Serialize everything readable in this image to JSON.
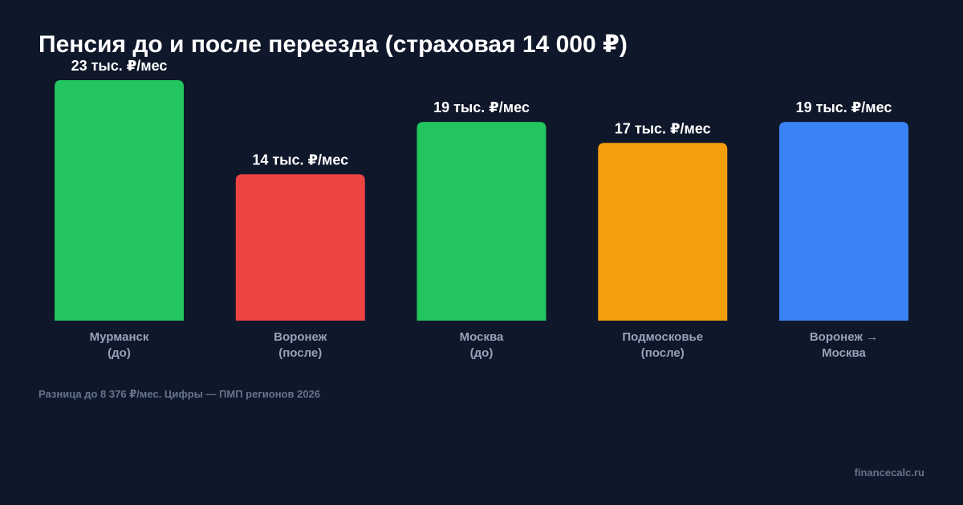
{
  "chart_data": {
    "type": "bar",
    "title": "Пенсия до и после переезда (страховая 14 000 ₽)",
    "categories": [
      [
        "Мурманск",
        "(до)"
      ],
      [
        "Воронеж",
        "(после)"
      ],
      [
        "Москва",
        "(до)"
      ],
      [
        "Подмосковье",
        "(после)"
      ],
      [
        "Воронеж →",
        "Москва"
      ]
    ],
    "values": [
      23,
      14,
      19,
      17,
      19
    ],
    "value_labels": [
      "23 тыс. ₽/мес",
      "14 тыс. ₽/мес",
      "19 тыс. ₽/мес",
      "17 тыс. ₽/мес",
      "19 тыс. ₽/мес"
    ],
    "colors": [
      "#22c55e",
      "#ef4444",
      "#22c55e",
      "#f59e0b",
      "#3b82f6"
    ],
    "ylim": [
      0,
      23
    ],
    "grid": false,
    "legend": "none"
  },
  "footnote": "Разница до 8 376 ₽/мес. Цифры — ПМП регионов 2026",
  "brand": "financecalc.ru"
}
